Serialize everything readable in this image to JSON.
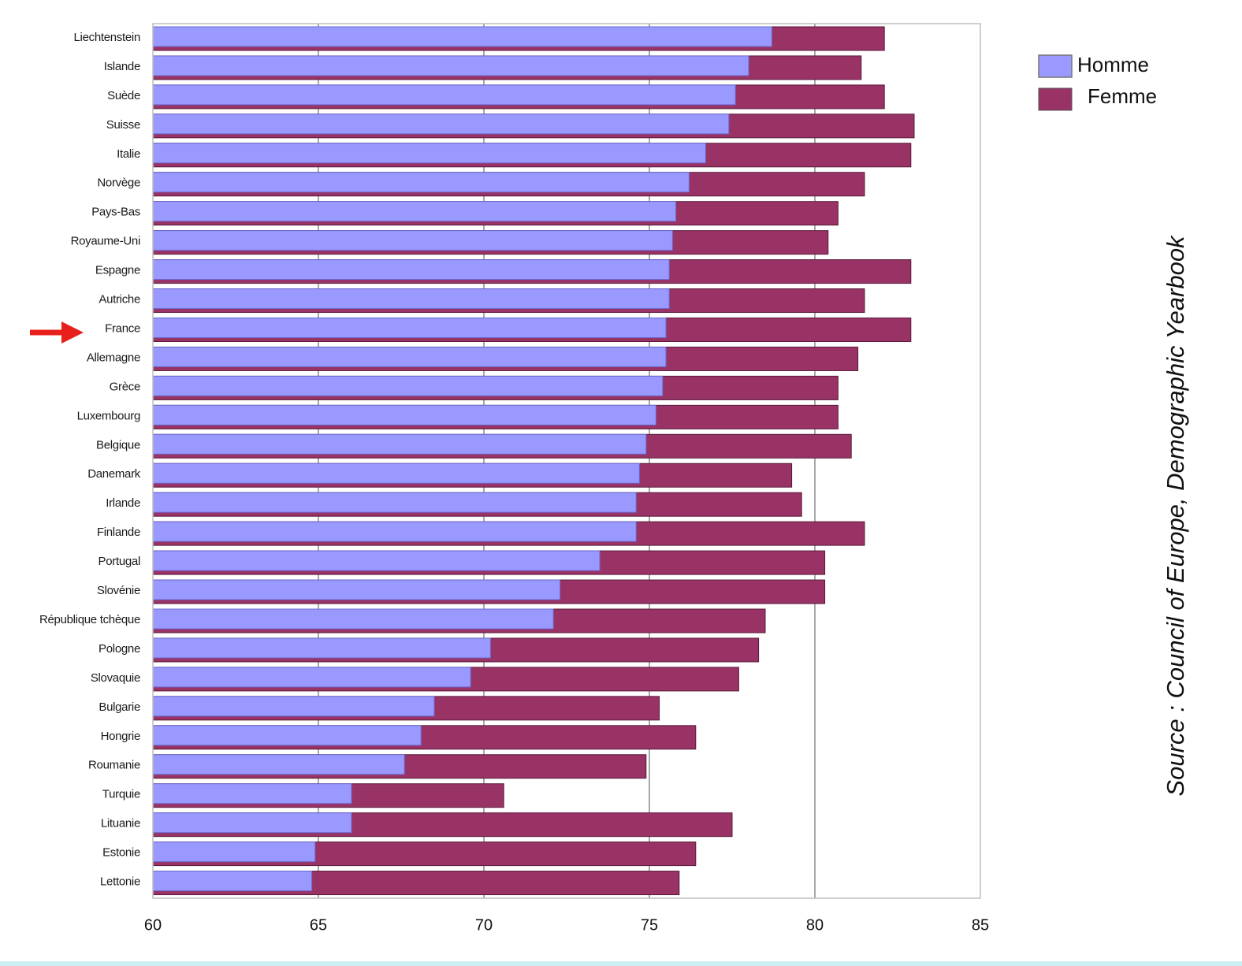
{
  "chart_data": {
    "type": "bar",
    "orientation": "horizontal",
    "categories": [
      "Liechtenstein",
      "Islande",
      "Suède",
      "Suisse",
      "Italie",
      "Norvège",
      "Pays-Bas",
      "Royaume-Uni",
      "Espagne",
      "Autriche",
      "France",
      "Allemagne",
      "Grèce",
      "Luxembourg",
      "Belgique",
      "Danemark",
      "Irlande",
      "Finlande",
      "Portugal",
      "Slovénie",
      "République tchèque",
      "Pologne",
      "Slovaquie",
      "Bulgarie",
      "Hongrie",
      "Roumanie",
      "Turquie",
      "Lituanie",
      "Estonie",
      "Lettonie"
    ],
    "series": [
      {
        "name": "Homme",
        "color": "#9999ff",
        "values": [
          78.7,
          78.0,
          77.6,
          77.4,
          76.7,
          76.2,
          75.8,
          75.7,
          75.6,
          75.6,
          75.5,
          75.5,
          75.4,
          75.2,
          74.9,
          74.7,
          74.6,
          74.6,
          73.5,
          72.3,
          72.1,
          70.2,
          69.6,
          68.5,
          68.1,
          67.6,
          66.0,
          66.0,
          64.9,
          64.8
        ]
      },
      {
        "name": "Femme",
        "color": "#993366",
        "values": [
          82.1,
          81.4,
          82.1,
          83.0,
          82.9,
          81.5,
          80.7,
          80.4,
          82.9,
          81.5,
          82.9,
          81.3,
          80.7,
          80.7,
          81.1,
          79.3,
          79.6,
          81.5,
          80.3,
          80.3,
          78.5,
          78.3,
          77.7,
          75.3,
          76.4,
          74.9,
          70.6,
          77.5,
          76.4,
          75.9
        ]
      }
    ],
    "x_ticks": [
      "60",
      "65",
      "70",
      "75",
      "80",
      "85"
    ],
    "xlim": [
      60,
      85
    ],
    "legend_position": "top-right",
    "highlighted_category": "France",
    "source": "Source : Council of Europe, Demographic Yearbook"
  }
}
